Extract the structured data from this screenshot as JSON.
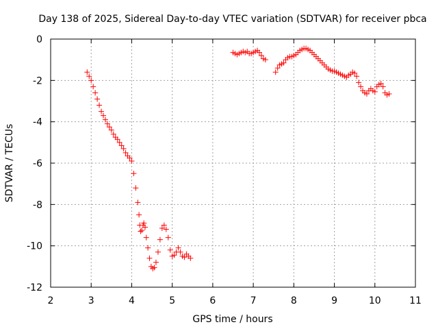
{
  "chart_data": {
    "type": "scatter",
    "title": "Day 138 of 2025, Sidereal Day-to-day VTEC variation (SDTVAR) for receiver pbca",
    "xlabel": "GPS time / hours",
    "ylabel": "SDTVAR / TECUs",
    "xlim": [
      2,
      11
    ],
    "ylim": [
      -12,
      0
    ],
    "xticks": [
      "2",
      "3",
      "4",
      "5",
      "6",
      "7",
      "8",
      "9",
      "10",
      "11"
    ],
    "yticks": [
      "0",
      "-2",
      "-4",
      "-6",
      "-8",
      "-10",
      "-12"
    ],
    "grid": true,
    "legend": "none",
    "marker": "plus",
    "series": [
      {
        "name": "SDTVAR",
        "color": "#ff0000",
        "x": [
          2.9,
          2.95,
          3.0,
          3.05,
          3.1,
          3.15,
          3.2,
          3.25,
          3.3,
          3.35,
          3.4,
          3.45,
          3.5,
          3.55,
          3.6,
          3.65,
          3.7,
          3.75,
          3.8,
          3.85,
          3.9,
          3.95,
          4.0,
          4.05,
          4.1,
          4.15,
          4.18,
          4.2,
          4.22,
          4.25,
          4.28,
          4.3,
          4.33,
          4.36,
          4.4,
          4.44,
          4.48,
          4.52,
          4.56,
          4.6,
          4.65,
          4.7,
          4.75,
          4.8,
          4.85,
          4.9,
          4.95,
          5.0,
          5.05,
          5.1,
          5.15,
          5.2,
          5.25,
          5.3,
          5.35,
          5.4,
          5.45,
          6.5,
          6.55,
          6.6,
          6.65,
          6.7,
          6.75,
          6.8,
          6.85,
          6.9,
          6.95,
          7.0,
          7.05,
          7.1,
          7.15,
          7.2,
          7.25,
          7.3,
          7.55,
          7.6,
          7.65,
          7.7,
          7.75,
          7.8,
          7.85,
          7.9,
          7.95,
          8.0,
          8.05,
          8.1,
          8.15,
          8.2,
          8.25,
          8.3,
          8.35,
          8.4,
          8.45,
          8.5,
          8.55,
          8.6,
          8.65,
          8.7,
          8.75,
          8.8,
          8.85,
          8.9,
          8.95,
          9.0,
          9.05,
          9.1,
          9.15,
          9.2,
          9.25,
          9.3,
          9.35,
          9.4,
          9.45,
          9.5,
          9.55,
          9.6,
          9.65,
          9.7,
          9.75,
          9.8,
          9.85,
          9.9,
          9.95,
          10.0,
          10.05,
          10.1,
          10.15,
          10.2,
          10.25,
          10.3,
          10.35
        ],
        "y": [
          -1.6,
          -1.8,
          -2.0,
          -2.3,
          -2.6,
          -2.9,
          -3.2,
          -3.5,
          -3.7,
          -3.9,
          -4.1,
          -4.25,
          -4.4,
          -4.6,
          -4.75,
          -4.85,
          -5.0,
          -5.15,
          -5.3,
          -5.5,
          -5.65,
          -5.75,
          -5.9,
          -6.5,
          -7.2,
          -7.9,
          -8.5,
          -9.0,
          -9.3,
          -9.25,
          -9.0,
          -8.9,
          -9.1,
          -9.6,
          -10.1,
          -10.6,
          -11.0,
          -11.1,
          -11.05,
          -10.8,
          -10.3,
          -9.7,
          -9.15,
          -9.0,
          -9.2,
          -9.6,
          -10.2,
          -10.5,
          -10.45,
          -10.3,
          -10.1,
          -10.3,
          -10.5,
          -10.55,
          -10.4,
          -10.5,
          -10.6,
          -0.65,
          -0.7,
          -0.75,
          -0.7,
          -0.65,
          -0.6,
          -0.65,
          -0.6,
          -0.7,
          -0.7,
          -0.65,
          -0.6,
          -0.55,
          -0.65,
          -0.8,
          -0.95,
          -1.0,
          -1.6,
          -1.4,
          -1.25,
          -1.2,
          -1.15,
          -1.0,
          -0.9,
          -0.85,
          -0.85,
          -0.8,
          -0.75,
          -0.65,
          -0.55,
          -0.5,
          -0.45,
          -0.45,
          -0.5,
          -0.55,
          -0.65,
          -0.75,
          -0.85,
          -0.95,
          -1.05,
          -1.15,
          -1.25,
          -1.35,
          -1.45,
          -1.5,
          -1.55,
          -1.55,
          -1.6,
          -1.65,
          -1.7,
          -1.75,
          -1.8,
          -1.85,
          -1.75,
          -1.7,
          -1.6,
          -1.65,
          -1.8,
          -2.1,
          -2.3,
          -2.5,
          -2.6,
          -2.65,
          -2.5,
          -2.4,
          -2.5,
          -2.55,
          -2.3,
          -2.2,
          -2.15,
          -2.3,
          -2.6,
          -2.7,
          -2.65
        ]
      }
    ]
  }
}
